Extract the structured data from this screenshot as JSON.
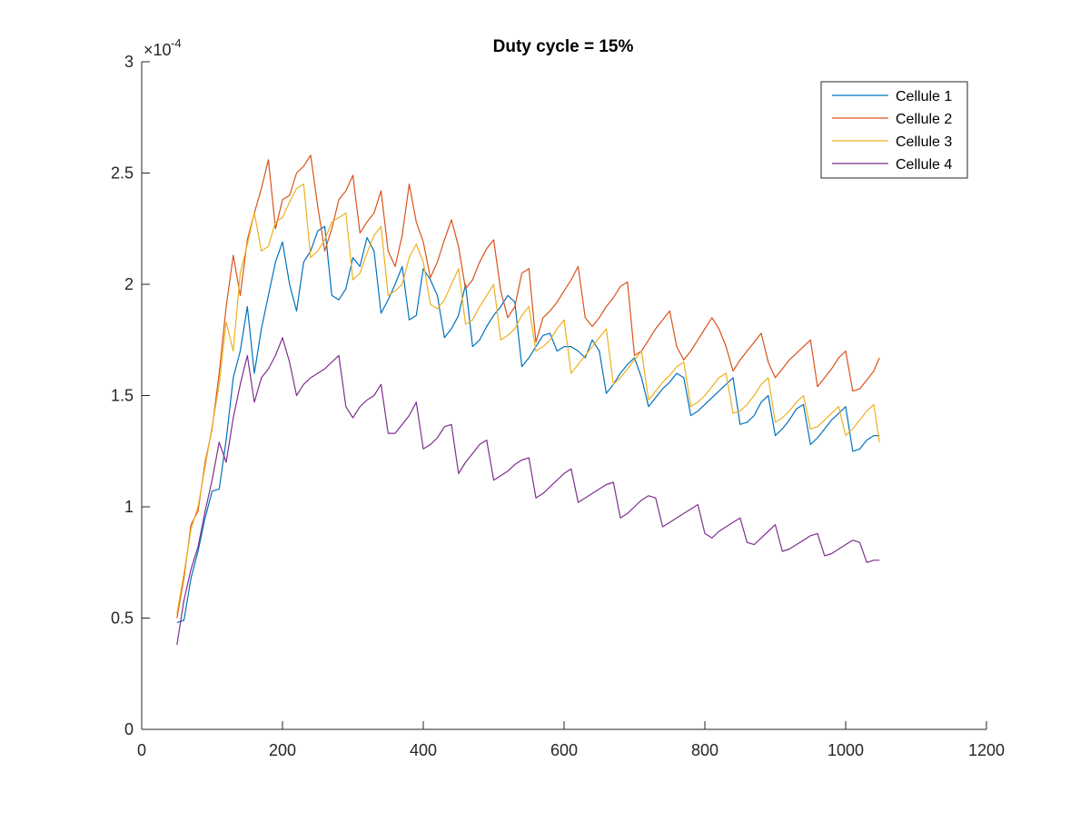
{
  "chart_data": {
    "type": "line",
    "title": "Duty cycle = 15%",
    "xlabel": "",
    "ylabel": "",
    "xlim": [
      0,
      1200
    ],
    "ylim": [
      0,
      0.0003
    ],
    "y_exponent_label": "×10",
    "y_exponent_power": "-4",
    "x_ticks": [
      0,
      200,
      400,
      600,
      800,
      1000,
      1200
    ],
    "x_tick_labels": [
      "0",
      "200",
      "400",
      "600",
      "800",
      "1000",
      "1200"
    ],
    "y_ticks": [
      0,
      5e-05,
      0.0001,
      0.00015,
      0.0002,
      0.00025,
      0.0003
    ],
    "y_tick_labels": [
      "0",
      "0.5",
      "1",
      "1.5",
      "2",
      "2.5",
      "3"
    ],
    "grid": false,
    "legend_position": "top-right",
    "series": [
      {
        "name": "Cellule 1",
        "color": "#0072BD",
        "x": [
          50,
          60,
          70,
          80,
          90,
          100,
          110,
          120,
          130,
          140,
          150,
          160,
          170,
          180,
          190,
          200,
          210,
          220,
          230,
          240,
          250,
          260,
          270,
          280,
          290,
          300,
          310,
          320,
          330,
          340,
          350,
          360,
          370,
          380,
          390,
          400,
          410,
          420,
          430,
          440,
          450,
          460,
          470,
          480,
          490,
          500,
          510,
          520,
          530,
          540,
          550,
          560,
          570,
          580,
          590,
          600,
          610,
          620,
          630,
          640,
          650,
          660,
          670,
          680,
          690,
          700,
          710,
          720,
          730,
          740,
          750,
          760,
          770,
          780,
          790,
          800,
          810,
          820,
          830,
          840,
          850,
          860,
          870,
          880,
          890,
          900,
          910,
          920,
          930,
          940,
          950,
          960,
          970,
          980,
          990,
          1000,
          1010,
          1020,
          1030,
          1040,
          1048
        ],
        "y": [
          4.8e-05,
          4.9e-05,
          6.8e-05,
          8e-05,
          9.5e-05,
          0.000107,
          0.000108,
          0.00013,
          0.000158,
          0.00017,
          0.00019,
          0.00016,
          0.00018,
          0.000195,
          0.00021,
          0.000219,
          0.0002,
          0.000188,
          0.00021,
          0.000215,
          0.000224,
          0.000226,
          0.000195,
          0.000193,
          0.000198,
          0.000212,
          0.000208,
          0.000221,
          0.000215,
          0.000187,
          0.000193,
          0.0002,
          0.000208,
          0.000184,
          0.000186,
          0.000207,
          0.000202,
          0.000195,
          0.000176,
          0.00018,
          0.000186,
          0.0002,
          0.000172,
          0.000175,
          0.000181,
          0.000186,
          0.00019,
          0.000195,
          0.000192,
          0.000163,
          0.000167,
          0.000172,
          0.000177,
          0.000178,
          0.00017,
          0.000172,
          0.000172,
          0.00017,
          0.000167,
          0.000175,
          0.00017,
          0.000151,
          0.000155,
          0.00016,
          0.000164,
          0.000167,
          0.000158,
          0.000145,
          0.000149,
          0.000153,
          0.000156,
          0.00016,
          0.000158,
          0.000141,
          0.000143,
          0.000146,
          0.000149,
          0.000152,
          0.000155,
          0.000158,
          0.000137,
          0.000138,
          0.000141,
          0.000147,
          0.00015,
          0.000132,
          0.000135,
          0.000139,
          0.000144,
          0.000146,
          0.000128,
          0.000131,
          0.000135,
          0.000139,
          0.000142,
          0.000145,
          0.000125,
          0.000126,
          0.00013,
          0.000132,
          0.000132
        ]
      },
      {
        "name": "Cellule 2",
        "color": "#D95319",
        "x": [
          50,
          60,
          70,
          80,
          90,
          100,
          110,
          120,
          130,
          140,
          150,
          160,
          170,
          180,
          190,
          200,
          210,
          220,
          230,
          240,
          250,
          260,
          270,
          280,
          290,
          300,
          310,
          320,
          330,
          340,
          350,
          360,
          370,
          380,
          390,
          400,
          410,
          420,
          430,
          440,
          450,
          460,
          470,
          480,
          490,
          500,
          510,
          520,
          530,
          540,
          550,
          560,
          570,
          580,
          590,
          600,
          610,
          620,
          630,
          640,
          650,
          660,
          670,
          680,
          690,
          700,
          710,
          720,
          730,
          740,
          750,
          760,
          770,
          780,
          790,
          800,
          810,
          820,
          830,
          840,
          850,
          860,
          870,
          880,
          890,
          900,
          910,
          920,
          930,
          940,
          950,
          960,
          970,
          980,
          990,
          1000,
          1010,
          1020,
          1030,
          1040,
          1048
        ],
        "y": [
          5e-05,
          6.8e-05,
          9.2e-05,
          9.8e-05,
          0.00012,
          0.000135,
          0.00016,
          0.00019,
          0.000213,
          0.000195,
          0.00022,
          0.000232,
          0.000243,
          0.000256,
          0.000225,
          0.000238,
          0.00024,
          0.00025,
          0.000253,
          0.000258,
          0.000235,
          0.000215,
          0.000225,
          0.000238,
          0.000242,
          0.000249,
          0.000223,
          0.000228,
          0.000232,
          0.000242,
          0.000215,
          0.000208,
          0.000222,
          0.000245,
          0.000228,
          0.000219,
          0.000203,
          0.00021,
          0.00022,
          0.000229,
          0.000217,
          0.000198,
          0.000202,
          0.00021,
          0.000216,
          0.00022,
          0.000197,
          0.000185,
          0.00019,
          0.000205,
          0.000207,
          0.000174,
          0.000185,
          0.000188,
          0.000192,
          0.000197,
          0.000202,
          0.000208,
          0.000185,
          0.000181,
          0.000185,
          0.00019,
          0.000194,
          0.000199,
          0.000201,
          0.000168,
          0.00017,
          0.000175,
          0.00018,
          0.000184,
          0.000188,
          0.000172,
          0.000166,
          0.00017,
          0.000175,
          0.00018,
          0.000185,
          0.00018,
          0.000172,
          0.000161,
          0.000166,
          0.00017,
          0.000174,
          0.000178,
          0.000165,
          0.000158,
          0.000162,
          0.000166,
          0.000169,
          0.000172,
          0.000175,
          0.000154,
          0.000158,
          0.000162,
          0.000167,
          0.00017,
          0.000152,
          0.000153,
          0.000157,
          0.000161,
          0.000167
        ]
      },
      {
        "name": "Cellule 3",
        "color": "#EDB120",
        "x": [
          50,
          60,
          70,
          80,
          90,
          100,
          110,
          120,
          130,
          140,
          150,
          160,
          170,
          180,
          190,
          200,
          210,
          220,
          230,
          240,
          250,
          260,
          270,
          280,
          290,
          300,
          310,
          320,
          330,
          340,
          350,
          360,
          370,
          380,
          390,
          400,
          410,
          420,
          430,
          440,
          450,
          460,
          470,
          480,
          490,
          500,
          510,
          520,
          530,
          540,
          550,
          560,
          570,
          580,
          590,
          600,
          610,
          620,
          630,
          640,
          650,
          660,
          670,
          680,
          690,
          700,
          710,
          720,
          730,
          740,
          750,
          760,
          770,
          780,
          790,
          800,
          810,
          820,
          830,
          840,
          850,
          860,
          870,
          880,
          890,
          900,
          910,
          920,
          930,
          940,
          950,
          960,
          970,
          980,
          990,
          1000,
          1010,
          1020,
          1030,
          1040,
          1048
        ],
        "y": [
          5.2e-05,
          7e-05,
          9e-05,
          0.0001,
          0.000118,
          0.000136,
          0.000155,
          0.000183,
          0.00017,
          0.000205,
          0.000218,
          0.000232,
          0.000215,
          0.000217,
          0.000228,
          0.00023,
          0.000237,
          0.000243,
          0.000245,
          0.000212,
          0.000215,
          0.00022,
          0.000228,
          0.00023,
          0.000232,
          0.000202,
          0.000205,
          0.000214,
          0.000222,
          0.000226,
          0.000195,
          0.000197,
          0.0002,
          0.000212,
          0.000218,
          0.00021,
          0.000191,
          0.000189,
          0.000193,
          0.0002,
          0.000207,
          0.000182,
          0.000184,
          0.00019,
          0.000195,
          0.0002,
          0.000175,
          0.000177,
          0.00018,
          0.000186,
          0.00019,
          0.00017,
          0.000172,
          0.000175,
          0.00018,
          0.000184,
          0.00016,
          0.000164,
          0.000168,
          0.000172,
          0.000176,
          0.00018,
          0.000155,
          0.000158,
          0.000162,
          0.000166,
          0.00017,
          0.000148,
          0.000152,
          0.000156,
          0.000159,
          0.000163,
          0.000165,
          0.000145,
          0.000147,
          0.00015,
          0.000154,
          0.000158,
          0.00016,
          0.000142,
          0.000143,
          0.000146,
          0.00015,
          0.000155,
          0.000158,
          0.000138,
          0.00014,
          0.000143,
          0.000147,
          0.00015,
          0.000135,
          0.000136,
          0.000139,
          0.000142,
          0.000145,
          0.000132,
          0.000135,
          0.000139,
          0.000143,
          0.000146,
          0.000129
        ]
      },
      {
        "name": "Cellule 4",
        "color": "#7E2F8E",
        "x": [
          50,
          60,
          70,
          80,
          90,
          100,
          110,
          120,
          130,
          140,
          150,
          160,
          170,
          180,
          190,
          200,
          210,
          220,
          230,
          240,
          250,
          260,
          270,
          280,
          290,
          300,
          310,
          320,
          330,
          340,
          350,
          360,
          370,
          380,
          390,
          400,
          410,
          420,
          430,
          440,
          450,
          460,
          470,
          480,
          490,
          500,
          510,
          520,
          530,
          540,
          550,
          560,
          570,
          580,
          590,
          600,
          610,
          620,
          630,
          640,
          650,
          660,
          670,
          680,
          690,
          700,
          710,
          720,
          730,
          740,
          750,
          760,
          770,
          780,
          790,
          800,
          810,
          820,
          830,
          840,
          850,
          860,
          870,
          880,
          890,
          900,
          910,
          920,
          930,
          940,
          950,
          960,
          970,
          980,
          990,
          1000,
          1010,
          1020,
          1030,
          1040,
          1048
        ],
        "y": [
          3.8e-05,
          5.8e-05,
          7.2e-05,
          8.2e-05,
          9.8e-05,
          0.000112,
          0.000129,
          0.00012,
          0.00014,
          0.000155,
          0.000168,
          0.000147,
          0.000158,
          0.000162,
          0.000168,
          0.000176,
          0.000165,
          0.00015,
          0.000155,
          0.000158,
          0.00016,
          0.000162,
          0.000165,
          0.000168,
          0.000145,
          0.00014,
          0.000145,
          0.000148,
          0.00015,
          0.000155,
          0.000133,
          0.000133,
          0.000137,
          0.000141,
          0.000147,
          0.000126,
          0.000128,
          0.000131,
          0.000136,
          0.000137,
          0.000115,
          0.00012,
          0.000124,
          0.000128,
          0.00013,
          0.000112,
          0.000114,
          0.000116,
          0.000119,
          0.000121,
          0.000122,
          0.000104,
          0.000106,
          0.000109,
          0.000112,
          0.000115,
          0.000117,
          0.000102,
          0.000104,
          0.000106,
          0.000108,
          0.00011,
          0.000111,
          9.5e-05,
          9.7e-05,
          0.0001,
          0.000103,
          0.000105,
          0.000104,
          9.1e-05,
          9.3e-05,
          9.5e-05,
          9.7e-05,
          9.9e-05,
          0.000101,
          8.8e-05,
          8.6e-05,
          8.9e-05,
          9.1e-05,
          9.3e-05,
          9.5e-05,
          8.4e-05,
          8.3e-05,
          8.6e-05,
          8.9e-05,
          9.2e-05,
          8e-05,
          8.1e-05,
          8.3e-05,
          8.5e-05,
          8.7e-05,
          8.8e-05,
          7.8e-05,
          7.9e-05,
          8.1e-05,
          8.3e-05,
          8.5e-05,
          8.4e-05,
          7.5e-05,
          7.6e-05,
          7.6e-05
        ]
      }
    ]
  }
}
